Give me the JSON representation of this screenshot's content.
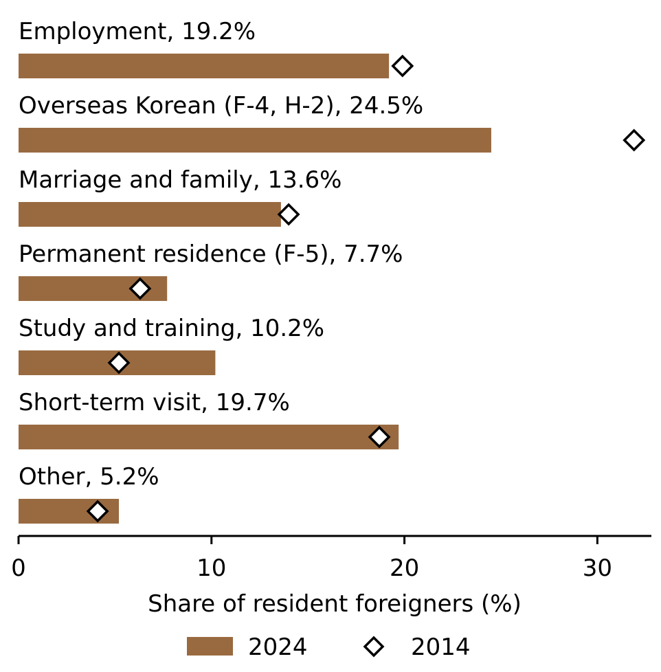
{
  "chart_data": {
    "type": "bar",
    "orientation": "horizontal",
    "categories": [
      "Employment",
      "Overseas Korean (F-4, H-2)",
      "Marriage and family",
      "Permanent residence (F-5)",
      "Study and training",
      "Short-term visit",
      "Other"
    ],
    "category_labels": [
      "Employment, 19.2%",
      "Overseas Korean (F-4, H-2), 24.5%",
      "Marriage and family, 13.6%",
      "Permanent residence (F-5), 7.7%",
      "Study and training, 10.2%",
      "Short-term visit, 19.7%",
      "Other, 5.2%"
    ],
    "series": [
      {
        "name": "2024",
        "mark": "bar",
        "color": "#996a40",
        "values": [
          19.2,
          24.5,
          13.6,
          7.7,
          10.2,
          19.7,
          5.2
        ]
      },
      {
        "name": "2014",
        "mark": "diamond",
        "color": "#000000",
        "values": [
          19.9,
          31.9,
          14.0,
          6.3,
          5.2,
          18.7,
          4.1
        ]
      }
    ],
    "title": "",
    "xlabel": "Share of resident foreigners (%)",
    "ylabel": "",
    "xlim": [
      0,
      32.8
    ],
    "xticks": [
      0,
      10,
      20,
      30
    ],
    "xtick_labels": [
      "0",
      "10",
      "20",
      "30"
    ],
    "grid": false,
    "legend_position": "bottom-center"
  }
}
